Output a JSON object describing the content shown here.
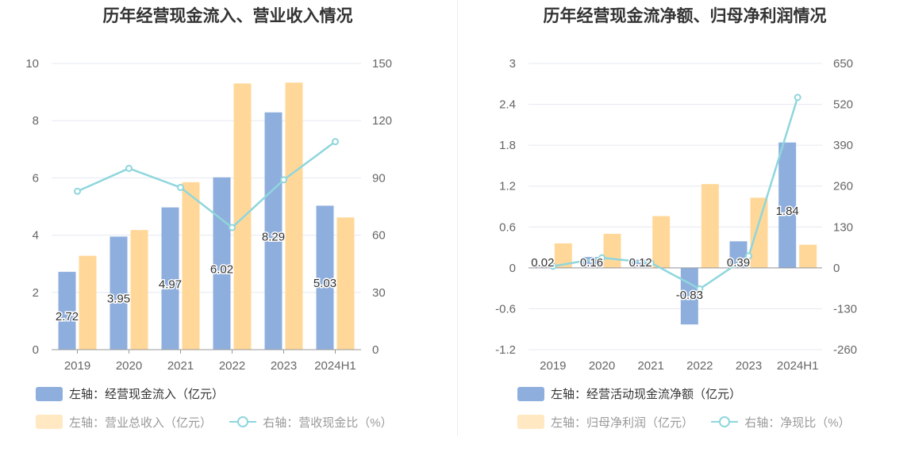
{
  "colors": {
    "bar1": "#8EAFDD",
    "bar2": "#FFD899",
    "line": "#8FD6DD"
  },
  "left": {
    "title": "历年经营现金流入、营业收入情况",
    "legend": {
      "bar1": "左轴：经营现金流入（亿元）",
      "bar2": "左轴：营业总收入（亿元）",
      "line": "右轴：营收现金比（%）"
    }
  },
  "right": {
    "title": "历年经营现金流净额、归母净利润情况",
    "legend": {
      "bar1": "左轴：经营活动现金流净额（亿元）",
      "bar2": "左轴：归母净利润（亿元）",
      "line": "右轴：净现比（%）"
    }
  },
  "chart_data": [
    {
      "type": "bar",
      "title": "历年经营现金流入、营业收入情况",
      "categories": [
        "2019",
        "2020",
        "2021",
        "2022",
        "2023",
        "2024H1"
      ],
      "y_left": {
        "min": 0,
        "max": 10,
        "ticks": [
          "0",
          "2",
          "4",
          "6",
          "8",
          "10"
        ]
      },
      "y_right": {
        "min": 0,
        "max": 150,
        "ticks": [
          "0",
          "30",
          "60",
          "90",
          "120",
          "150"
        ]
      },
      "series": [
        {
          "name": "左轴：经营现金流入（亿元）",
          "axis": "left",
          "type": "bar",
          "values": [
            2.72,
            3.95,
            4.97,
            6.02,
            8.29,
            5.03
          ],
          "labels": [
            "2.72",
            "3.95",
            "4.97",
            "6.02",
            "8.29",
            "5.03"
          ]
        },
        {
          "name": "左轴：营业总收入（亿元）",
          "axis": "left",
          "type": "bar",
          "values": [
            3.28,
            4.18,
            5.85,
            9.3,
            9.33,
            4.62
          ]
        },
        {
          "name": "右轴：营收现金比（%）",
          "axis": "right",
          "type": "line",
          "values": [
            83,
            95,
            85,
            64,
            89,
            109
          ]
        }
      ],
      "legend_position": "bottom-left",
      "grid": true
    },
    {
      "type": "bar",
      "title": "历年经营现金流净额、归母净利润情况",
      "categories": [
        "2019",
        "2020",
        "2021",
        "2022",
        "2023",
        "2024H1"
      ],
      "y_left": {
        "min": -1.2,
        "max": 3,
        "ticks": [
          "-1.2",
          "-0.6",
          "0",
          "0.6",
          "1.2",
          "1.8",
          "2.4",
          "3"
        ]
      },
      "y_right": {
        "min": -260,
        "max": 650,
        "ticks": [
          "-260",
          "-130",
          "0",
          "130",
          "260",
          "390",
          "520",
          "650"
        ]
      },
      "series": [
        {
          "name": "左轴：经营活动现金流净额（亿元）",
          "axis": "left",
          "type": "bar",
          "values": [
            0.02,
            0.16,
            0.12,
            -0.83,
            0.39,
            1.84
          ],
          "labels": [
            "0.02",
            "0.16",
            "0.12",
            "-0.83",
            "0.39",
            "1.84"
          ]
        },
        {
          "name": "左轴：归母净利润（亿元）",
          "axis": "left",
          "type": "bar",
          "values": [
            0.36,
            0.5,
            0.76,
            1.23,
            1.03,
            0.34
          ]
        },
        {
          "name": "右轴：净现比（%）",
          "axis": "right",
          "type": "line",
          "values": [
            5,
            32,
            16,
            -67,
            38,
            542
          ]
        }
      ],
      "legend_position": "bottom-left",
      "grid": true
    }
  ]
}
